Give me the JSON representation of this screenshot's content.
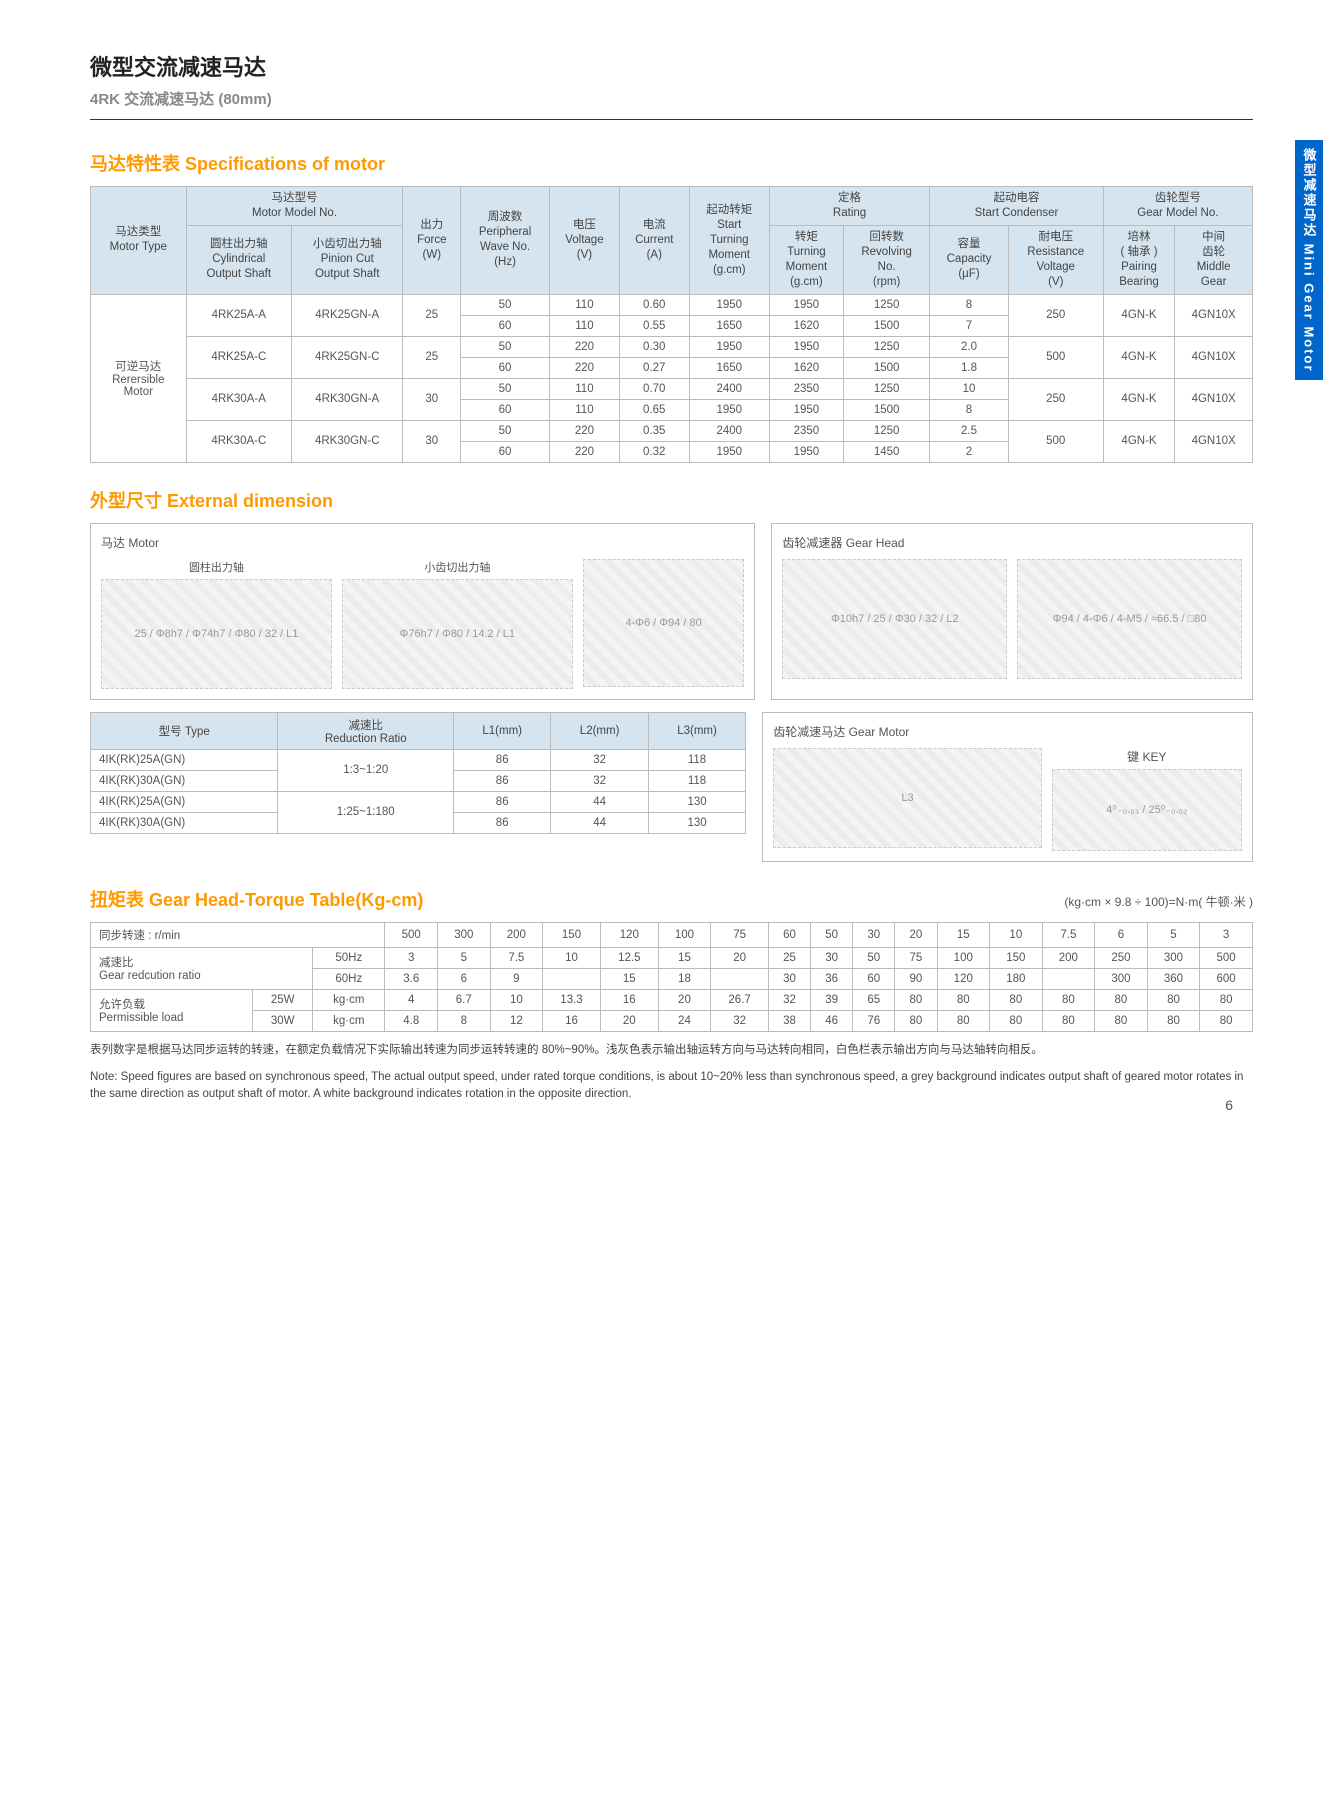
{
  "side_tab": "微型减速马达 Mini Gear Motor",
  "page_title": "微型交流减速马达",
  "page_subtitle": "4RK 交流减速马达 (80mm)",
  "sec1_title": "马达特性表 Specifications of motor",
  "spec": {
    "h_motor_type": "马达类型\nMotor Type",
    "h_model": "马达型号\nMotor Model No.",
    "h_force": "出力\nForce\n(W)",
    "h_wave": "周波数\nPeripheral\nWave No.\n(Hz)",
    "h_voltage": "电压\nVoltage\n(V)",
    "h_current": "电流\nCurrent\n(A)",
    "h_start": "起动转矩\nStart\nTurning\nMoment\n(g.cm)",
    "h_rating": "定格\nRating",
    "h_cond": "起动电容\nStart Condenser",
    "h_gear": "齿轮型号\nGear Model No.",
    "h_cyl": "圆柱出力轴\nCylindrical\nOutput Shaft",
    "h_pin": "小齿切出力轴\nPinion Cut\nOutput Shaft",
    "h_tm": "转矩\nTurning\nMoment\n(g.cm)",
    "h_rev": "回转数\nRevolving\nNo.\n(rpm)",
    "h_cap": "容量\nCapacity\n(μF)",
    "h_res": "耐电压\nResistance\nVoltage\n(V)",
    "h_pair": "培林\n( 轴承 )\nPairing\nBearing",
    "h_mid": "中间\n齿轮\nMiddle\nGear",
    "mt": "可逆马达\nRerersible\nMotor",
    "rows": [
      {
        "m1": "4RK25A-A",
        "m2": "4RK25GN-A",
        "w": "25",
        "hz": "50",
        "v": "110",
        "a": "0.60",
        "st": "1950",
        "tm": "1950",
        "rev": "1250",
        "cap": "8",
        "res": "250",
        "pair": "4GN-K",
        "mid": "4GN10X"
      },
      {
        "m1": "",
        "m2": "",
        "w": "",
        "hz": "60",
        "v": "110",
        "a": "0.55",
        "st": "1650",
        "tm": "1620",
        "rev": "1500",
        "cap": "7",
        "res": "",
        "pair": "",
        "mid": ""
      },
      {
        "m1": "4RK25A-C",
        "m2": "4RK25GN-C",
        "w": "25",
        "hz": "50",
        "v": "220",
        "a": "0.30",
        "st": "1950",
        "tm": "1950",
        "rev": "1250",
        "cap": "2.0",
        "res": "500",
        "pair": "4GN-K",
        "mid": "4GN10X"
      },
      {
        "m1": "",
        "m2": "",
        "w": "",
        "hz": "60",
        "v": "220",
        "a": "0.27",
        "st": "1650",
        "tm": "1620",
        "rev": "1500",
        "cap": "1.8",
        "res": "",
        "pair": "",
        "mid": ""
      },
      {
        "m1": "4RK30A-A",
        "m2": "4RK30GN-A",
        "w": "30",
        "hz": "50",
        "v": "110",
        "a": "0.70",
        "st": "2400",
        "tm": "2350",
        "rev": "1250",
        "cap": "10",
        "res": "250",
        "pair": "4GN-K",
        "mid": "4GN10X"
      },
      {
        "m1": "",
        "m2": "",
        "w": "",
        "hz": "60",
        "v": "110",
        "a": "0.65",
        "st": "1950",
        "tm": "1950",
        "rev": "1500",
        "cap": "8",
        "res": "",
        "pair": "",
        "mid": ""
      },
      {
        "m1": "4RK30A-C",
        "m2": "4RK30GN-C",
        "w": "30",
        "hz": "50",
        "v": "220",
        "a": "0.35",
        "st": "2400",
        "tm": "2350",
        "rev": "1250",
        "cap": "2.5",
        "res": "500",
        "pair": "4GN-K",
        "mid": "4GN10X"
      },
      {
        "m1": "",
        "m2": "",
        "w": "",
        "hz": "60",
        "v": "220",
        "a": "0.32",
        "st": "1950",
        "tm": "1950",
        "rev": "1450",
        "cap": "2",
        "res": "",
        "pair": "",
        "mid": ""
      }
    ]
  },
  "sec2_title": "外型尺寸 External dimension",
  "dim_motor_label": "马达 Motor",
  "dim_motor_cyl": "圆柱出力轴",
  "dim_motor_pin": "小齿切出力轴",
  "dim_gearhead_label": "齿轮减速器 Gear Head",
  "dim_gearmotor_label": "齿轮减速马达 Gear Motor",
  "dim_key": "键 KEY",
  "dim_table": {
    "h_type": "型号 Type",
    "h_ratio": "减速比\nReduction Ratio",
    "h_l1": "L1(mm)",
    "h_l2": "L2(mm)",
    "h_l3": "L3(mm)",
    "rows": [
      {
        "t": "4IK(RK)25A(GN)",
        "r": "1:3~1:20",
        "l1": "86",
        "l2": "32",
        "l3": "118"
      },
      {
        "t": "4IK(RK)30A(GN)",
        "r": "",
        "l1": "86",
        "l2": "32",
        "l3": "118"
      },
      {
        "t": "4IK(RK)25A(GN)",
        "r": "1:25~1:180",
        "l1": "86",
        "l2": "44",
        "l3": "130"
      },
      {
        "t": "4IK(RK)30A(GN)",
        "r": "",
        "l1": "86",
        "l2": "44",
        "l3": "130"
      }
    ]
  },
  "sec3_title": "扭矩表 Gear Head-Torque Table(Kg-cm)",
  "torque_unit": "(kg·cm × 9.8 ÷ 100)=N·m( 牛顿·米 )",
  "torque": {
    "h_speed": "同步转速 : r/min",
    "speed_vals": [
      "500",
      "300",
      "200",
      "150",
      "120",
      "100",
      "75",
      "60",
      "50",
      "30",
      "20",
      "15",
      "10",
      "7.5",
      "6",
      "5",
      "3"
    ],
    "h_ratio": "减速比\nGear redcution ratio",
    "ratio50_label": "50Hz",
    "ratio50": [
      "3",
      "5",
      "7.5",
      "10",
      "12.5",
      "15",
      "20",
      "25",
      "30",
      "50",
      "75",
      "100",
      "150",
      "200",
      "250",
      "300",
      "500"
    ],
    "ratio60_label": "60Hz",
    "ratio60": [
      "3.6",
      "6",
      "9",
      "",
      "15",
      "18",
      "",
      "30",
      "36",
      "60",
      "90",
      "120",
      "180",
      "",
      "300",
      "360",
      "600"
    ],
    "h_load": "允许负载\nPermissible load",
    "load25_w": "25W",
    "load25_u": "kg·cm",
    "load25": [
      "4",
      "6.7",
      "10",
      "13.3",
      "16",
      "20",
      "26.7",
      "32",
      "39",
      "65",
      "80",
      "80",
      "80",
      "80",
      "80",
      "80",
      "80"
    ],
    "load30_w": "30W",
    "load30_u": "kg·cm",
    "load30": [
      "4.8",
      "8",
      "12",
      "16",
      "20",
      "24",
      "32",
      "38",
      "46",
      "76",
      "80",
      "80",
      "80",
      "80",
      "80",
      "80",
      "80"
    ]
  },
  "note_cn": "表列数字是根据马达同步运转的转速，在额定负载情况下实际输出转速为同步运转转速的 80%~90%。浅灰色表示输出轴运转方向与马达转向相同，白色栏表示输出方向与马达轴转向相反。",
  "note_en": "Note: Speed figures are based on synchronous speed, The actual output speed, under rated torque conditions, is about 10~20% less than synchronous speed, a grey background indicates output shaft of geared motor rotates in the same direction as output shaft of motor. A white background indicates rotation in the opposite direction.",
  "page_num": "6"
}
